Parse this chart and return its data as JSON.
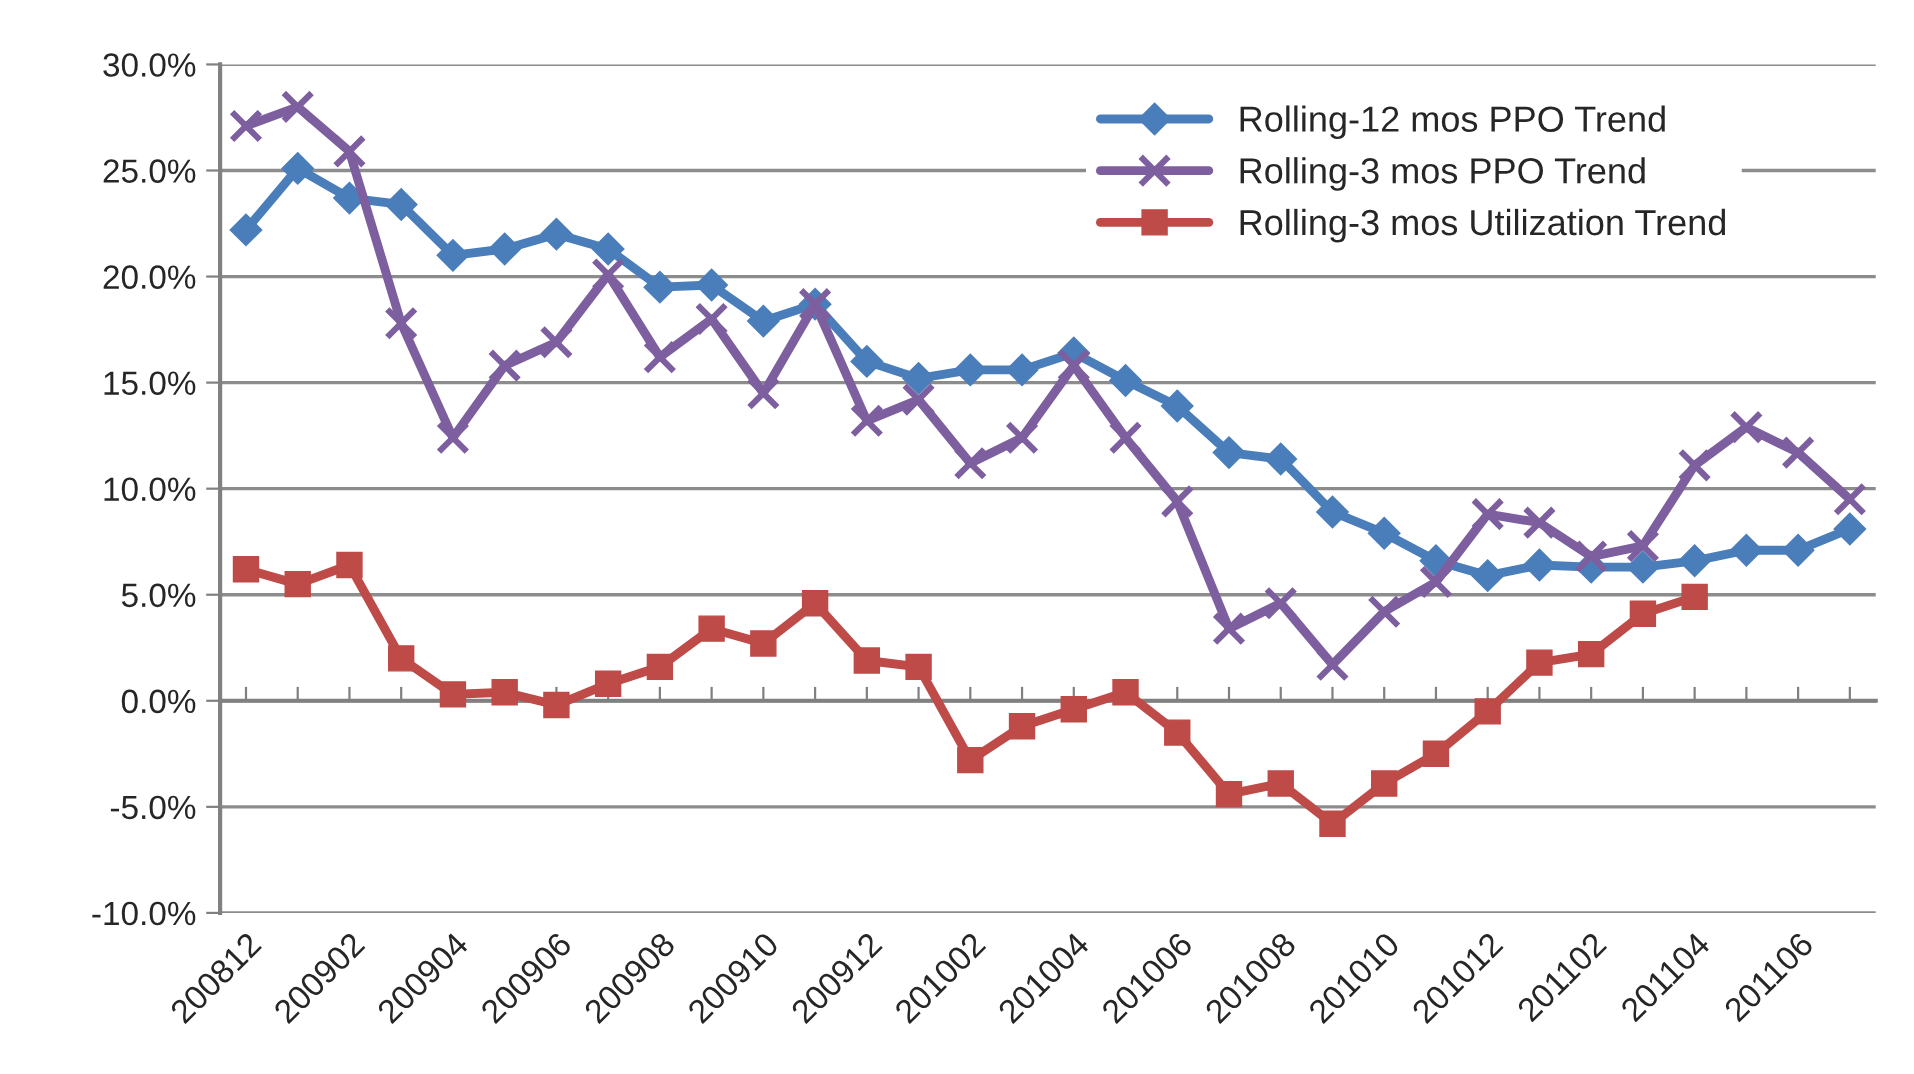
{
  "chart_data": {
    "type": "line",
    "categories": [
      "200812",
      null,
      "200902",
      null,
      "200904",
      null,
      "200906",
      null,
      "200908",
      null,
      "200910",
      null,
      "200912",
      null,
      "201002",
      null,
      "201004",
      null,
      "201006",
      null,
      "201008",
      null,
      "201010",
      null,
      "201012",
      null,
      "201102",
      null,
      "201104",
      null,
      "201106",
      null
    ],
    "series": [
      {
        "name": "Rolling-12 mos PPO Trend",
        "color": "#4a7ebb",
        "marker": "diamond",
        "values": [
          22.2,
          25.1,
          23.7,
          23.4,
          21.0,
          21.3,
          22.0,
          21.3,
          19.5,
          19.6,
          17.9,
          18.7,
          16.0,
          15.2,
          15.6,
          15.6,
          16.4,
          15.1,
          13.9,
          11.7,
          11.4,
          8.9,
          7.9,
          6.6,
          5.9,
          6.4,
          6.3,
          6.3,
          6.6,
          7.1,
          7.1,
          8.1
        ]
      },
      {
        "name": "Rolling-3 mos PPO Trend",
        "color": "#7d5fa0",
        "marker": "cross",
        "values": [
          27.1,
          28.0,
          25.9,
          17.8,
          12.4,
          15.8,
          16.9,
          20.1,
          16.2,
          18.0,
          14.5,
          18.7,
          13.2,
          14.2,
          11.2,
          12.4,
          15.8,
          12.4,
          9.4,
          3.4,
          4.6,
          1.7,
          4.2,
          5.6,
          8.8,
          8.4,
          6.8,
          7.3,
          11.1,
          12.9,
          11.7,
          9.5
        ]
      },
      {
        "name": "Rolling-3 mos Utilization Trend",
        "color": "#be4b48",
        "marker": "square",
        "values": [
          6.2,
          5.5,
          6.4,
          2.0,
          0.3,
          0.4,
          -0.2,
          0.8,
          1.6,
          3.4,
          2.7,
          4.6,
          1.9,
          1.6,
          -2.8,
          -1.2,
          -0.4,
          0.4,
          -1.5,
          -4.4,
          -3.9,
          -5.8,
          -3.9,
          -2.5,
          -0.5,
          1.8,
          2.2,
          4.1,
          4.9,
          null,
          null,
          null
        ]
      }
    ],
    "ylim": [
      -10,
      30
    ],
    "yticks": [
      {
        "value": -10,
        "label": "-10.0%"
      },
      {
        "value": -5,
        "label": "-5.0%"
      },
      {
        "value": 0,
        "label": "0.0%"
      },
      {
        "value": 5,
        "label": "5.0%"
      },
      {
        "value": 10,
        "label": "10.0%"
      },
      {
        "value": 15,
        "label": "15.0%"
      },
      {
        "value": 20,
        "label": "20.0%"
      },
      {
        "value": 25,
        "label": "25.0%"
      },
      {
        "value": 30,
        "label": "30.0%"
      }
    ],
    "grid": "y",
    "legend": "top right",
    "line_style": "solid"
  }
}
